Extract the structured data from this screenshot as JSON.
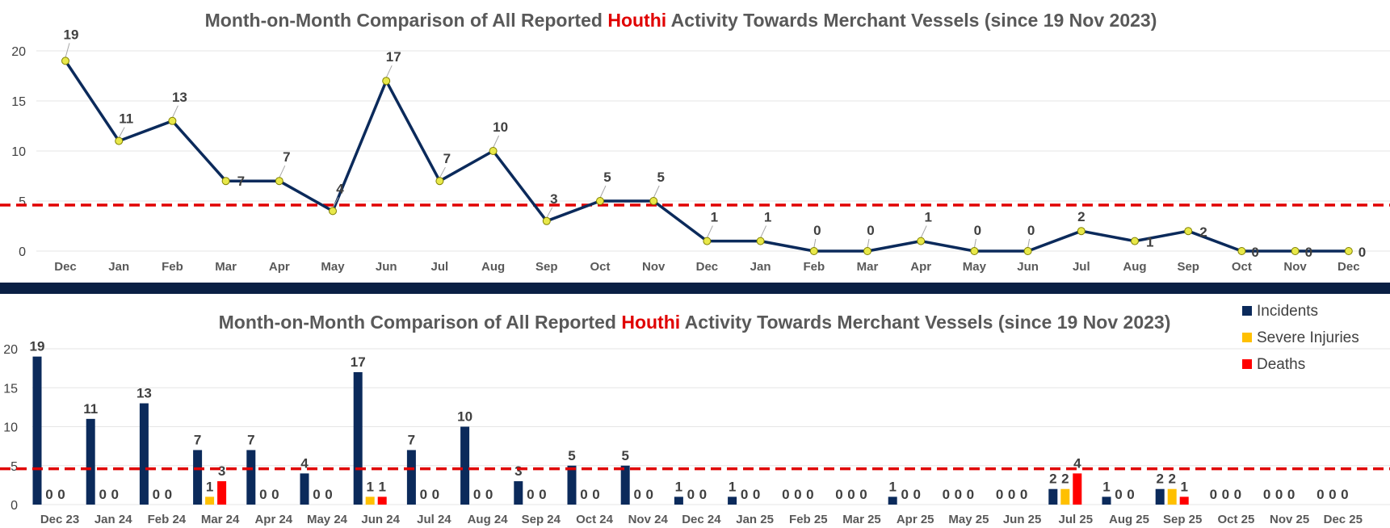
{
  "colors": {
    "line": "#0b2a5b",
    "marker": "#e8e84a",
    "incidents": "#0b2a5b",
    "severe_injuries": "#ffc000",
    "deaths": "#ff0000",
    "threshold": "#e00000",
    "separator": "#0a1f44",
    "grid": "#e6e6e6",
    "title_highlight": "#e00000"
  },
  "chart_data": [
    {
      "type": "line",
      "title_parts": [
        "Month-on-Month Comparison of All Reported ",
        "Houthi",
        " Activity Towards Merchant Vessels (since 19 Nov 2023)"
      ],
      "categories": [
        "Dec",
        "Jan",
        "Feb",
        "Mar",
        "Apr",
        "May",
        "Jun",
        "Jul",
        "Aug",
        "Sep",
        "Oct",
        "Nov",
        "Dec",
        "Jan",
        "Feb",
        "Mar",
        "Apr",
        "May",
        "Jun",
        "Jul",
        "Aug",
        "Sep",
        "Oct",
        "Nov",
        "Dec"
      ],
      "values": [
        19,
        11,
        13,
        7,
        7,
        4,
        17,
        7,
        10,
        3,
        5,
        5,
        1,
        1,
        0,
        0,
        1,
        0,
        0,
        2,
        1,
        2,
        0,
        0,
        0
      ],
      "yticks": [
        0,
        5,
        10,
        15,
        20
      ],
      "ylim": [
        0,
        20
      ],
      "threshold": 4.6,
      "grid": true
    },
    {
      "type": "bar",
      "title_parts": [
        "Month-on-Month Comparison of All Reported ",
        "Houthi",
        " Activity Towards Merchant Vessels  (since 19 Nov 2023)"
      ],
      "categories": [
        "Dec 23",
        "Jan 24",
        "Feb 24",
        "Mar 24",
        "Apr 24",
        "May 24",
        "Jun 24",
        "Jul 24",
        "Aug 24",
        "Sep 24",
        "Oct 24",
        "Nov 24",
        "Dec 24",
        "Jan 25",
        "Feb 25",
        "Mar 25",
        "Apr 25",
        "May 25",
        "Jun 25",
        "Jul 25",
        "Aug 25",
        "Sep 25",
        "Oct 25",
        "Nov 25",
        "Dec 25"
      ],
      "series": [
        {
          "name": "Incidents",
          "values": [
            19,
            11,
            13,
            7,
            7,
            4,
            17,
            7,
            10,
            3,
            5,
            5,
            1,
            1,
            0,
            0,
            1,
            0,
            0,
            2,
            1,
            2,
            0,
            0,
            0
          ]
        },
        {
          "name": "Severe Injuries",
          "values": [
            0,
            0,
            0,
            1,
            0,
            0,
            1,
            0,
            0,
            0,
            0,
            0,
            0,
            0,
            0,
            0,
            0,
            0,
            0,
            2,
            0,
            2,
            0,
            0,
            0
          ]
        },
        {
          "name": "Deaths",
          "values": [
            0,
            0,
            0,
            3,
            0,
            0,
            1,
            0,
            0,
            0,
            0,
            0,
            0,
            0,
            0,
            0,
            0,
            0,
            0,
            4,
            0,
            1,
            0,
            0,
            0
          ]
        }
      ],
      "yticks": [
        0,
        5,
        10,
        15,
        20
      ],
      "ylim": [
        0,
        20
      ],
      "threshold": 4.6,
      "grid": true,
      "legend": "top-right"
    }
  ]
}
